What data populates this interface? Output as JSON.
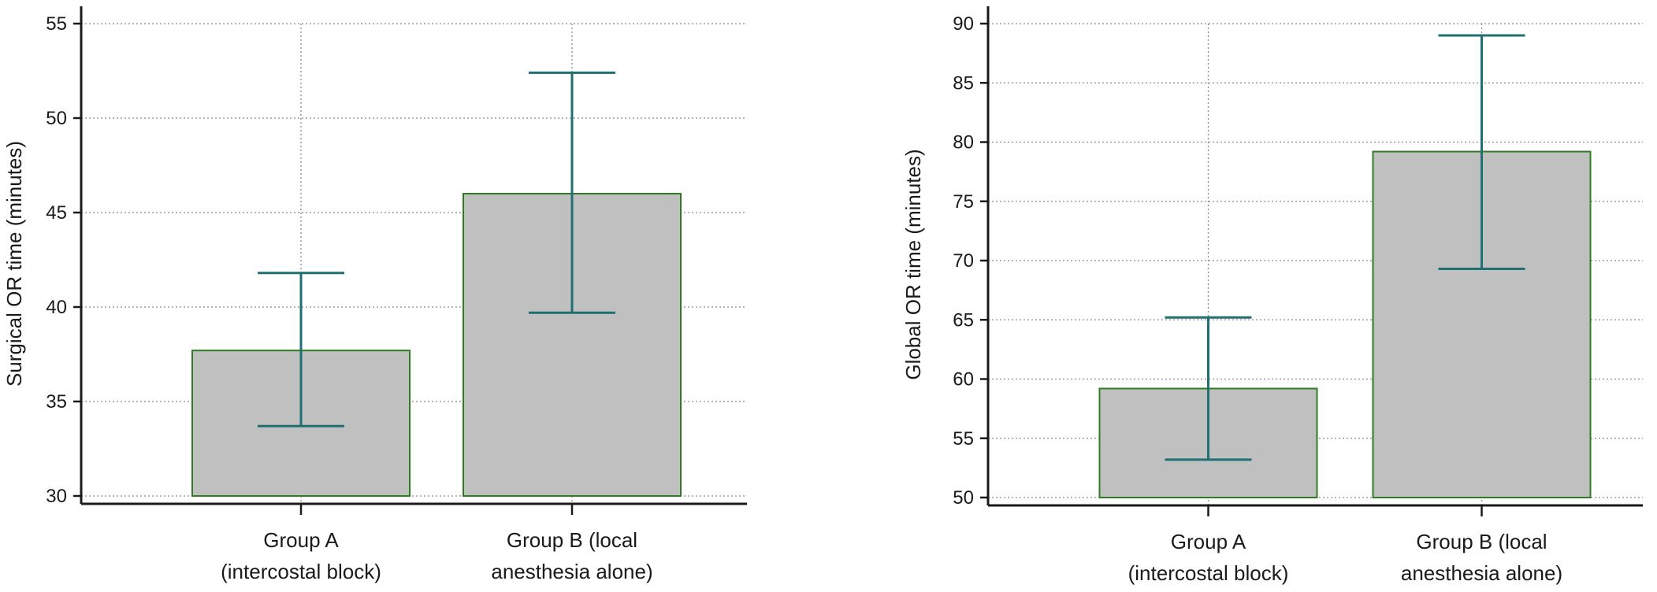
{
  "chart_data": [
    {
      "type": "bar",
      "categories": [
        [
          "Group A",
          "(intercostal block)"
        ],
        [
          "Group B (local",
          "anesthesia alone)"
        ]
      ],
      "values": [
        37.7,
        46.0
      ],
      "error_low": [
        33.7,
        39.7
      ],
      "error_high": [
        41.8,
        52.4
      ],
      "ylabel": "Surgical OR time (minutes)",
      "ylim": [
        30,
        55
      ],
      "yticks": [
        30,
        35,
        40,
        45,
        50,
        55
      ],
      "grid": true,
      "colors": {
        "bar_fill": "#c0c0c0",
        "bar_edge": "#2e7d22",
        "error_bar": "#1f6f73"
      }
    },
    {
      "type": "bar",
      "categories": [
        [
          "Group A",
          "(intercostal block)"
        ],
        [
          "Group B (local",
          "anesthesia alone)"
        ]
      ],
      "values": [
        59.2,
        79.2
      ],
      "error_low": [
        53.2,
        69.3
      ],
      "error_high": [
        65.2,
        89.0
      ],
      "ylabel": "Global OR time (minutes)",
      "ylim": [
        50,
        90
      ],
      "yticks": [
        50,
        55,
        60,
        65,
        70,
        75,
        80,
        85,
        90
      ],
      "grid": true,
      "colors": {
        "bar_fill": "#c0c0c0",
        "bar_edge": "#2e7d22",
        "error_bar": "#1f6f73"
      }
    }
  ]
}
